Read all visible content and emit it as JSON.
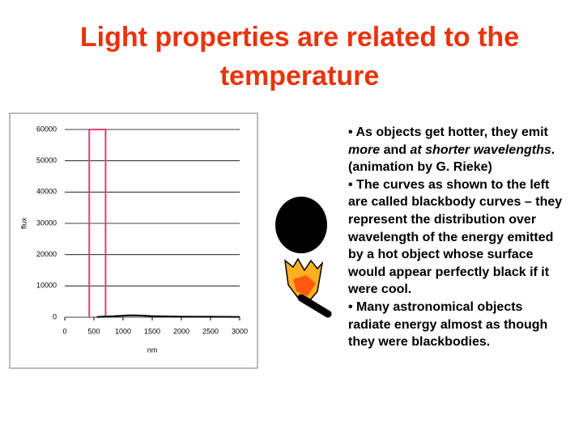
{
  "header": {
    "title": "Light properties are related to the temperature"
  },
  "chart_data": {
    "type": "line",
    "ylabel": "flux",
    "xlabel": "nm",
    "xlim": [
      0,
      3000
    ],
    "xticks": [
      0,
      500,
      1000,
      1500,
      2000,
      2500,
      3000
    ],
    "ylim": [
      0,
      60000
    ],
    "yticks": [
      0,
      10000,
      20000,
      30000,
      40000,
      50000,
      60000
    ],
    "grid": true,
    "series": [
      {
        "color": "#e0407a",
        "x": [
          420,
          420,
          700,
          700
        ],
        "values": [
          0,
          60000,
          60000,
          0
        ]
      },
      {
        "color": "#000000",
        "x": [
          550,
          800,
          1000,
          1100,
          1300,
          1500,
          2000,
          2500,
          3000
        ],
        "values": [
          100,
          300,
          500,
          600,
          550,
          350,
          200,
          150,
          100
        ]
      }
    ]
  },
  "bullets": [
    [
      "• As objects get hotter, they emit ",
      "more",
      " and ",
      "at shorter wavelengths",
      ". (animation by G. Rieke)"
    ],
    [
      "• The curves as shown to the left are called blackbody curves – they represent the distribution over wavelength of the energy emitted by a hot object whose surface would appear perfectly black if it were cool."
    ],
    [
      "• Many astronomical objects radiate energy almost as though they were blackbodies."
    ]
  ]
}
